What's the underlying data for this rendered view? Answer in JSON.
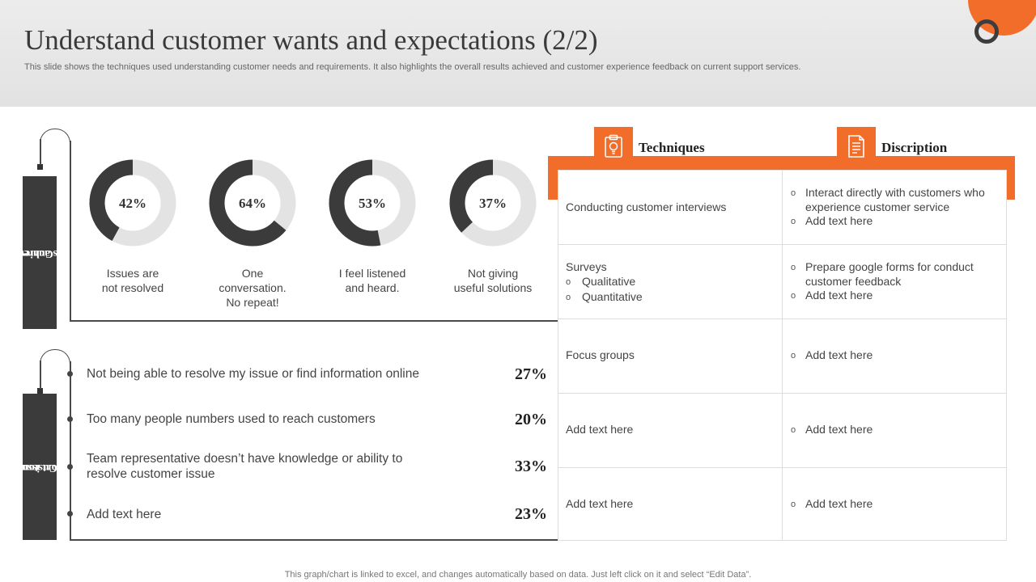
{
  "header": {
    "title": "Understand customer wants and expectations (2/2)",
    "subtitle": "This slide shows the techniques used understanding customer needs and requirements. It also highlights the overall results achieved and customer experience feedback on current support services."
  },
  "colors": {
    "accent": "#f26c2a",
    "dark": "#3b3b3b",
    "light_gray": "#e3e3e3"
  },
  "results": {
    "section_label_line1": "Current",
    "section_label_line2": "results achieved",
    "donuts": [
      {
        "percent": 42,
        "label": "42%",
        "caption": [
          "Issues are",
          "not resolved"
        ]
      },
      {
        "percent": 64,
        "label": "64%",
        "caption": [
          "One",
          "conversation.",
          "No repeat!"
        ]
      },
      {
        "percent": 53,
        "label": "53%",
        "caption": [
          "I feel listened",
          "and heard."
        ]
      },
      {
        "percent": 37,
        "label": "37%",
        "caption": [
          "Not giving",
          "useful solutions"
        ]
      }
    ]
  },
  "issues": {
    "section_label_line1": "Customer",
    "section_label_line2": "support issues",
    "items": [
      {
        "text": "Not being able to resolve my issue or find information online",
        "pct": "27%"
      },
      {
        "text": "Too many people numbers used to reach customers",
        "pct": "20%"
      },
      {
        "text": "Team representative doesn’t have knowledge or ability to resolve customer issue",
        "pct": "33%"
      },
      {
        "text": "Add text here",
        "pct": "23%"
      }
    ]
  },
  "table": {
    "col1_header": "Techniques",
    "col2_header": "Discription",
    "col1_icon": "clipboard-bulb-icon",
    "col2_icon": "document-icon",
    "rows": [
      {
        "technique": "Conducting customer interviews",
        "sub": [],
        "desc": [
          "Interact directly with customers who experience customer service",
          "Add text here"
        ]
      },
      {
        "technique": "Surveys",
        "sub": [
          "Qualitative",
          "Quantitative"
        ],
        "desc": [
          "Prepare google forms for conduct customer feedback",
          "Add text here"
        ]
      },
      {
        "technique": "Focus groups",
        "sub": [],
        "desc": [
          "Add text here"
        ]
      },
      {
        "technique": "Add text here",
        "sub": [],
        "desc": [
          "Add text here"
        ]
      },
      {
        "technique": "Add text here",
        "sub": [],
        "desc": [
          "Add text here"
        ]
      }
    ]
  },
  "footer": "This graph/chart is linked to excel, and changes automatically based on data. Just left click on it and select “Edit Data”."
}
